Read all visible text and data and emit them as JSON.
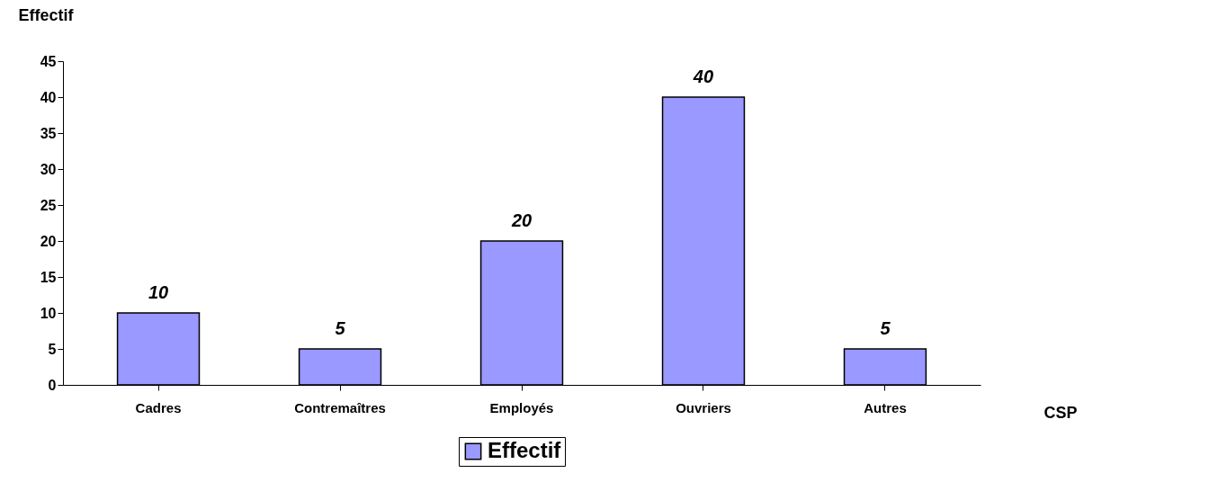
{
  "chart_data": {
    "type": "bar",
    "xlabel": "CSP",
    "ylabel": "Effectif",
    "categories": [
      "Cadres",
      "Contremaîtres",
      "Employés",
      "Ouvriers",
      "Autres"
    ],
    "series": [
      {
        "name": "Effectif",
        "color": "#9999ff",
        "values": [
          10,
          5,
          20,
          40,
          5
        ]
      }
    ],
    "ylim": [
      0,
      45
    ],
    "yticks": [
      0,
      5,
      10,
      15,
      20,
      25,
      30,
      35,
      40,
      45
    ],
    "data_labels": true,
    "grid": false,
    "legend": "bottom"
  }
}
